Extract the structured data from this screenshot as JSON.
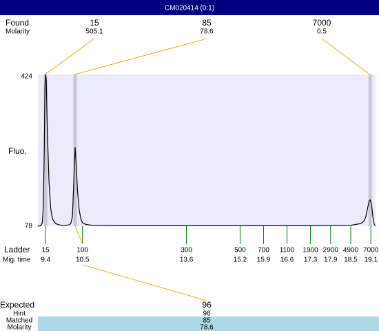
{
  "title": "CM020414 (0:1)",
  "chart_data": {
    "type": "line",
    "ylabel": "Fluo.",
    "color": "#000000",
    "x": [
      9.17,
      9.25,
      9.3,
      9.33,
      9.36,
      9.38,
      9.4,
      9.42,
      9.45,
      9.5,
      9.55,
      9.6,
      9.7,
      9.8,
      9.9,
      10.0,
      10.1,
      10.15,
      10.2,
      10.25,
      10.28,
      10.31,
      10.35,
      10.4,
      10.45,
      10.5,
      10.6,
      10.8,
      11.5,
      13,
      15,
      17,
      18.5,
      18.8,
      18.9,
      18.95,
      19.0,
      19.05,
      19.08,
      19.12,
      19.16,
      19.2,
      19.24
    ],
    "values": [
      78,
      79,
      85,
      120,
      250,
      400,
      424,
      410,
      300,
      180,
      120,
      95,
      84,
      81,
      80,
      80,
      81,
      84,
      100,
      200,
      258,
      220,
      160,
      115,
      95,
      86,
      82,
      80,
      79,
      79,
      79,
      79,
      80,
      84,
      90,
      100,
      118,
      136,
      138,
      128,
      100,
      82,
      79
    ],
    "xlim": [
      9.17,
      19.24
    ],
    "ylim": [
      78,
      424
    ],
    "yticks": [
      424,
      78
    ]
  },
  "found": {
    "label": "Found",
    "molarity_label": "Molarity",
    "peaks": [
      {
        "size": 15,
        "molarity": 505.1,
        "time": 9.4
      },
      {
        "size": 85,
        "molarity": 78.6,
        "time": 10.28
      },
      {
        "size": 7000,
        "molarity": 0.5,
        "time": 19.08
      }
    ]
  },
  "ladder": {
    "label": "Ladder",
    "time_label": "Mig. time",
    "sizes": [
      15,
      100,
      300,
      500,
      700,
      1100,
      1900,
      2900,
      4900,
      7000
    ],
    "times": [
      9.4,
      10.5,
      13.6,
      15.2,
      15.9,
      16.6,
      17.3,
      17.9,
      18.5,
      19.1
    ]
  },
  "expected": {
    "label": "Expected",
    "value": 96,
    "hint_label": "Hint",
    "hint": 96,
    "matched_label": "Matched",
    "matched": 85,
    "molarity_label": "Molarity",
    "molarity": 78.6
  }
}
